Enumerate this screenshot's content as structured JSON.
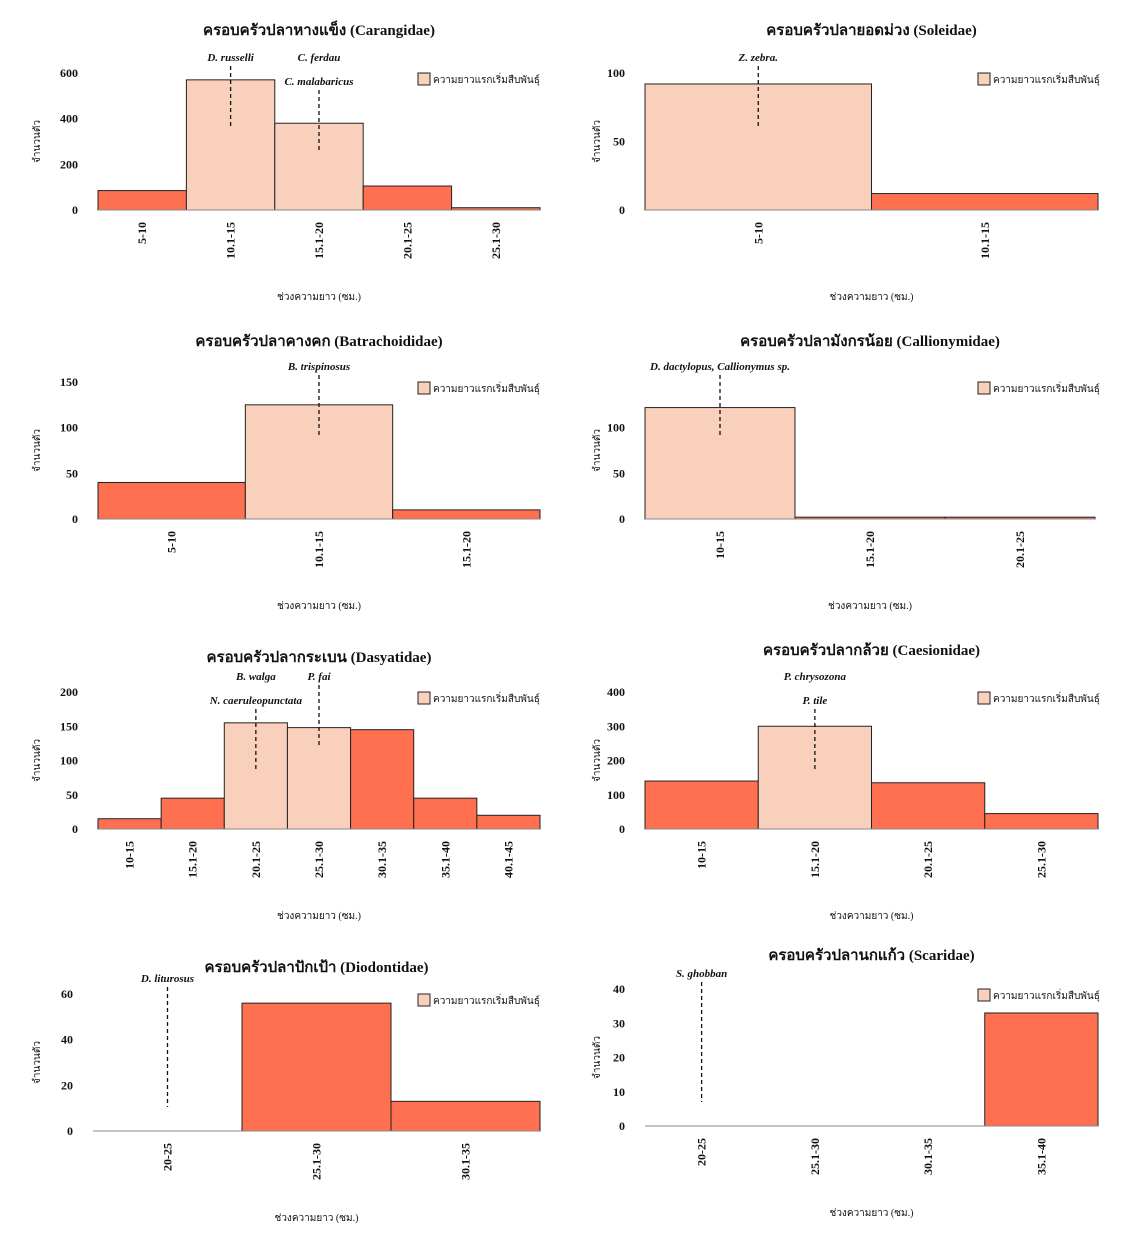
{
  "chart_data": [
    {
      "type": "bar",
      "title": "ครอบครัวปลาหางแข็ง (Carangidae)",
      "x_label": "ช่วงความยาว (ซม.)",
      "y_label": "จำนวนตัว",
      "legend": "ความยาวแรกเริ่มสืบพันธุ์",
      "categories": [
        "5-10",
        "10.1-15",
        "15.1-20",
        "20.1-25",
        "25.1-30"
      ],
      "values": [
        85,
        570,
        380,
        105,
        10
      ],
      "colors": [
        "#ff7050",
        "#f9d0bb",
        "#f9d0bb",
        "#ff7050",
        "#ff7050"
      ],
      "ylim": [
        0,
        600
      ],
      "yticks": [
        0,
        200,
        400,
        600
      ],
      "annotations": [
        {
          "text": "D. russelli",
          "category": "10.1-15"
        },
        {
          "text": "C. ferdau",
          "category": "15.1-20"
        },
        {
          "text": "C. malabaricus",
          "category": "15.1-20"
        }
      ]
    },
    {
      "type": "bar",
      "title": "ครอบครัวปลายอดม่วง (Soleidae)",
      "x_label": "ช่วงความยาว (ซม.)",
      "y_label": "จำนวนตัว",
      "legend": "ความยาวแรกเริ่มสืบพันธุ์",
      "categories": [
        "5-10",
        "10.1-15"
      ],
      "values": [
        92,
        12
      ],
      "colors": [
        "#f9d0bb",
        "#ff7050"
      ],
      "ylim": [
        0,
        100
      ],
      "yticks": [
        0,
        50,
        100
      ],
      "annotations": [
        {
          "text": "Z. zebra.",
          "category": "5-10"
        }
      ]
    },
    {
      "type": "bar",
      "title": "ครอบครัวปลาคางคก (Batrachoididae)",
      "x_label": "ช่วงความยาว (ซม.)",
      "y_label": "จำนวนตัว",
      "legend": "ความยาวแรกเริ่มสืบพันธุ์",
      "categories": [
        "5-10",
        "10.1-15",
        "15.1-20"
      ],
      "values": [
        40,
        125,
        10
      ],
      "colors": [
        "#ff7050",
        "#f9d0bb",
        "#ff7050"
      ],
      "ylim": [
        0,
        150
      ],
      "yticks": [
        0,
        50,
        100,
        150
      ],
      "annotations": [
        {
          "text": "B. trispinosus",
          "category": "10.1-15"
        }
      ]
    },
    {
      "type": "bar",
      "title": "ครอบครัวปลามังกรน้อย (Callionymidae)",
      "x_label": "ช่วงความยาว (ซม.)",
      "y_label": "จำนวนตัว",
      "legend": "ความยาวแรกเริ่มสืบพันธุ์",
      "categories": [
        "10-15",
        "15.1-20",
        "20.1-25"
      ],
      "values": [
        122,
        2,
        2
      ],
      "colors": [
        "#f9d0bb",
        "#ff7050",
        "#ff7050"
      ],
      "ylim": [
        0,
        150
      ],
      "yticks": [
        0,
        50,
        100
      ],
      "annotations": [
        {
          "text": "D. dactylopus, Callionymus sp.",
          "category": "10-15"
        }
      ]
    },
    {
      "type": "bar",
      "title": "ครอบครัวปลากระเบน (Dasyatidae)",
      "x_label": "ช่วงความยาว (ซม.)",
      "y_label": "จำนวนตัว",
      "legend": "ความยาวแรกเริ่มสืบพันธุ์",
      "categories": [
        "10-15",
        "15.1-20",
        "20.1-25",
        "25.1-30",
        "30.1-35",
        "35.1-40",
        "40.1-45"
      ],
      "values": [
        15,
        45,
        155,
        148,
        145,
        45,
        20
      ],
      "colors": [
        "#ff7050",
        "#ff7050",
        "#f9d0bb",
        "#f9d0bb",
        "#ff7050",
        "#ff7050",
        "#ff7050"
      ],
      "ylim": [
        0,
        200
      ],
      "yticks": [
        0,
        50,
        100,
        150,
        200
      ],
      "annotations": [
        {
          "text": "B. walga",
          "category": "20.1-25"
        },
        {
          "text": "N. caeruleopunctata",
          "category": "20.1-25"
        },
        {
          "text": "P. fai",
          "category": "25.1-30"
        }
      ]
    },
    {
      "type": "bar",
      "title": "ครอบครัวปลากล้วย (Caesionidae)",
      "x_label": "ช่วงความยาว (ซม.)",
      "y_label": "จำนวนตัว",
      "legend": "ความยาวแรกเริ่มสืบพันธุ์",
      "categories": [
        "10-15",
        "15.1-20",
        "20.1-25",
        "25.1-30"
      ],
      "values": [
        140,
        300,
        135,
        45
      ],
      "colors": [
        "#ff7050",
        "#f9d0bb",
        "#ff7050",
        "#ff7050"
      ],
      "ylim": [
        0,
        400
      ],
      "yticks": [
        0,
        100,
        200,
        300,
        400
      ],
      "annotations": [
        {
          "text": "P. chrysozona",
          "category": "15.1-20"
        },
        {
          "text": "P. tile",
          "category": "15.1-20"
        }
      ]
    },
    {
      "type": "bar",
      "title": "ครอบครัวปลาปักเป้า (Diodontidae)",
      "x_label": "ช่วงความยาว (ซม.)",
      "y_label": "จำนวนตัว",
      "legend": "ความยาวแรกเริ่มสืบพันธุ์",
      "categories": [
        "20-25",
        "25.1-30",
        "30.1-35"
      ],
      "values": [
        0,
        56,
        13
      ],
      "colors": [
        "#ff7050",
        "#ff7050",
        "#ff7050"
      ],
      "ylim": [
        0,
        60
      ],
      "yticks": [
        0,
        20,
        40,
        60
      ],
      "annotations": [
        {
          "text": "D. liturosus",
          "category": "20-25"
        }
      ]
    },
    {
      "type": "bar",
      "title": "ครอบครัวปลานกแก้ว (Scaridae)",
      "x_label": "ช่วงความยาว (ซม.)",
      "y_label": "จำนวนตัว",
      "legend": "ความยาวแรกเริ่มสืบพันธุ์",
      "categories": [
        "20-25",
        "25.1-30",
        "30.1-35",
        "35.1-40"
      ],
      "values": [
        0,
        0,
        0,
        33
      ],
      "colors": [
        "#ff7050",
        "#ff7050",
        "#ff7050",
        "#ff7050"
      ],
      "ylim": [
        0,
        40
      ],
      "yticks": [
        0,
        10,
        20,
        30,
        40
      ],
      "annotations": [
        {
          "text": "S. ghobban",
          "category": "20-25"
        }
      ]
    }
  ]
}
